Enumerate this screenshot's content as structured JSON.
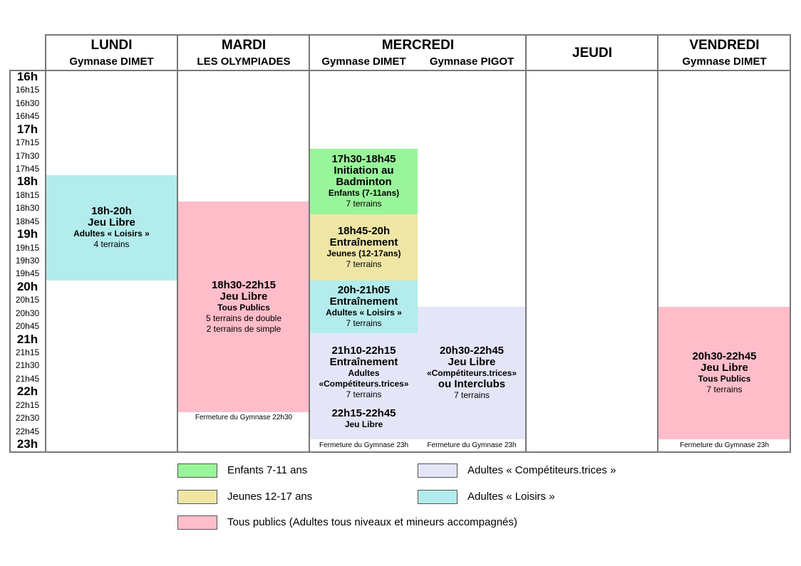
{
  "colors": {
    "enfants": "#99f59a",
    "jeunes": "#efe6a6",
    "tous_publics": "#ffbdca",
    "competiteurs": "#e5e5f8",
    "loisirs": "#b3ecec"
  },
  "header": {
    "lundi": {
      "day": "LUNDI",
      "gym": "Gymnase DIMET"
    },
    "mardi": {
      "day": "MARDI",
      "gym": "LES OLYMPIADES"
    },
    "mercredi": {
      "day": "MERCREDI",
      "gym1": "Gymnase DIMET",
      "gym2": "Gymnase PIGOT"
    },
    "jeudi": {
      "day": "JEUDI"
    },
    "vendredi": {
      "day": "VENDREDI",
      "gym": "Gymnase DIMET"
    }
  },
  "times": [
    "16h",
    "16h15",
    "16h30",
    "16h45",
    "17h",
    "17h15",
    "17h30",
    "17h45",
    "18h",
    "18h15",
    "18h30",
    "18h45",
    "19h",
    "19h15",
    "19h30",
    "19h45",
    "20h",
    "20h15",
    "20h30",
    "20h45",
    "21h",
    "21h15",
    "21h30",
    "21h45",
    "22h",
    "22h15",
    "22h30",
    "22h45",
    "23h"
  ],
  "blocks": {
    "lundi": {
      "time": "18h-20h",
      "title": "Jeu Libre",
      "audience": "Adultes « Loisirs »",
      "details": "4 terrains"
    },
    "mardi": {
      "time": "18h30-22h15",
      "title": "Jeu Libre",
      "audience": "Tous Publics",
      "details1": "5 terrains de double",
      "details2": "2 terrains de simple",
      "closing": "Fermeture du Gymnase 22h30"
    },
    "mer_initiation": {
      "time": "17h30-18h45",
      "title1": "Initiation au",
      "title2": "Badminton",
      "audience": "Enfants (7-11ans)",
      "details": "7 terrains"
    },
    "mer_jeunes": {
      "time": "18h45-20h",
      "title": "Entraînement",
      "audience": "Jeunes (12-17ans)",
      "details": "7 terrains"
    },
    "mer_loisirs": {
      "time": "20h-21h05",
      "title": "Entraînement",
      "audience": "Adultes « Loisirs »",
      "details": "7 terrains"
    },
    "mer_compet": {
      "time": "21h10-22h15",
      "title": "Entraînement",
      "audience1": "Adultes",
      "audience2": "«Compétiteurs.trices»",
      "details": "7 terrains"
    },
    "mer_jeu": {
      "time": "22h15-22h45",
      "title": "Jeu Libre"
    },
    "mer_closing1": "Fermeture du Gymnase 23h",
    "pigot": {
      "time": "20h30-22h45",
      "title": "Jeu Libre",
      "audience": "«Compétiteurs.trices»",
      "title2": "ou Interclubs",
      "details": "7 terrains",
      "closing": "Fermeture du Gymnase 23h"
    },
    "vendredi": {
      "time": "20h30-22h45",
      "title": "Jeu Libre",
      "audience": "Tous Publics",
      "details": "7 terrains",
      "closing": "Fermeture du Gymnase 23h"
    }
  },
  "legend": {
    "enfants": "Enfants 7-11 ans",
    "jeunes": "Jeunes 12-17 ans",
    "tous_publics": "Tous publics (Adultes tous niveaux et mineurs accompagnés)",
    "competiteurs": "Adultes « Compétiteurs.trices »",
    "loisirs": "Adultes « Loisirs »"
  }
}
